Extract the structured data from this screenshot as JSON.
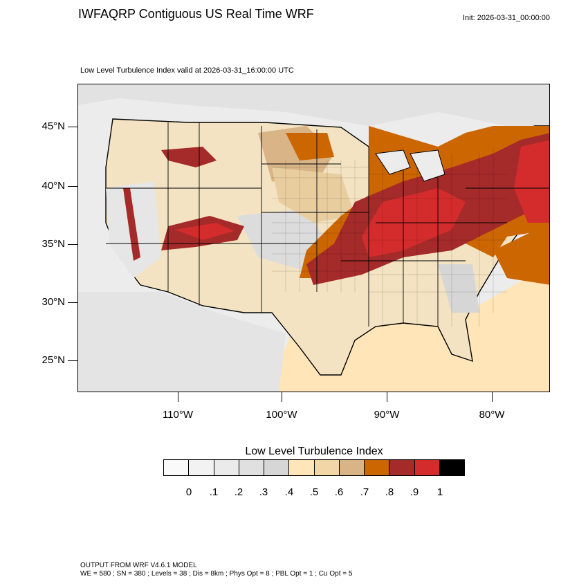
{
  "header": {
    "title": "IWFAQRP Contiguous US Real Time WRF",
    "init": "Init: 2026-03-31_00:00:00",
    "subtitle": "Low Level Turbulence Index valid at 2026-03-31_16:00:00 UTC"
  },
  "map": {
    "lat_labels": [
      "45°N",
      "40°N",
      "35°N",
      "30°N",
      "25°N"
    ],
    "lon_labels": [
      "110°W",
      "100°W",
      "90°W",
      "80°W"
    ],
    "region": "Contiguous United States",
    "colors": {
      "land_base": "#f3e3c2",
      "low_gray": "#e6e6e6",
      "light_tan": "#ffe5b8",
      "tan": "#d8b487",
      "orange": "#cc6600",
      "dark_red": "#a52a2a",
      "red": "#d42c2c"
    }
  },
  "colorbar": {
    "title": "Low Level Turbulence Index",
    "labels": [
      "0",
      ".1",
      ".2",
      ".3",
      ".4",
      ".5",
      ".6",
      ".7",
      ".8",
      ".9",
      "1"
    ],
    "colors": [
      "#fafafa",
      "#f2f2f2",
      "#ebebeb",
      "#e0e0e0",
      "#d6d6d6",
      "#ffe5b8",
      "#f2d6a8",
      "#d8b487",
      "#cc6600",
      "#a52a2a",
      "#d42c2c",
      "#000000"
    ]
  },
  "footer": {
    "line1": "OUTPUT FROM WRF V4.6.1 MODEL",
    "line2": "WE = 580 ; SN = 380 ; Levels = 38 ; Dis = 8km ; Phys Opt = 8 ; PBL Opt = 1 ; Cu Opt = 5"
  }
}
